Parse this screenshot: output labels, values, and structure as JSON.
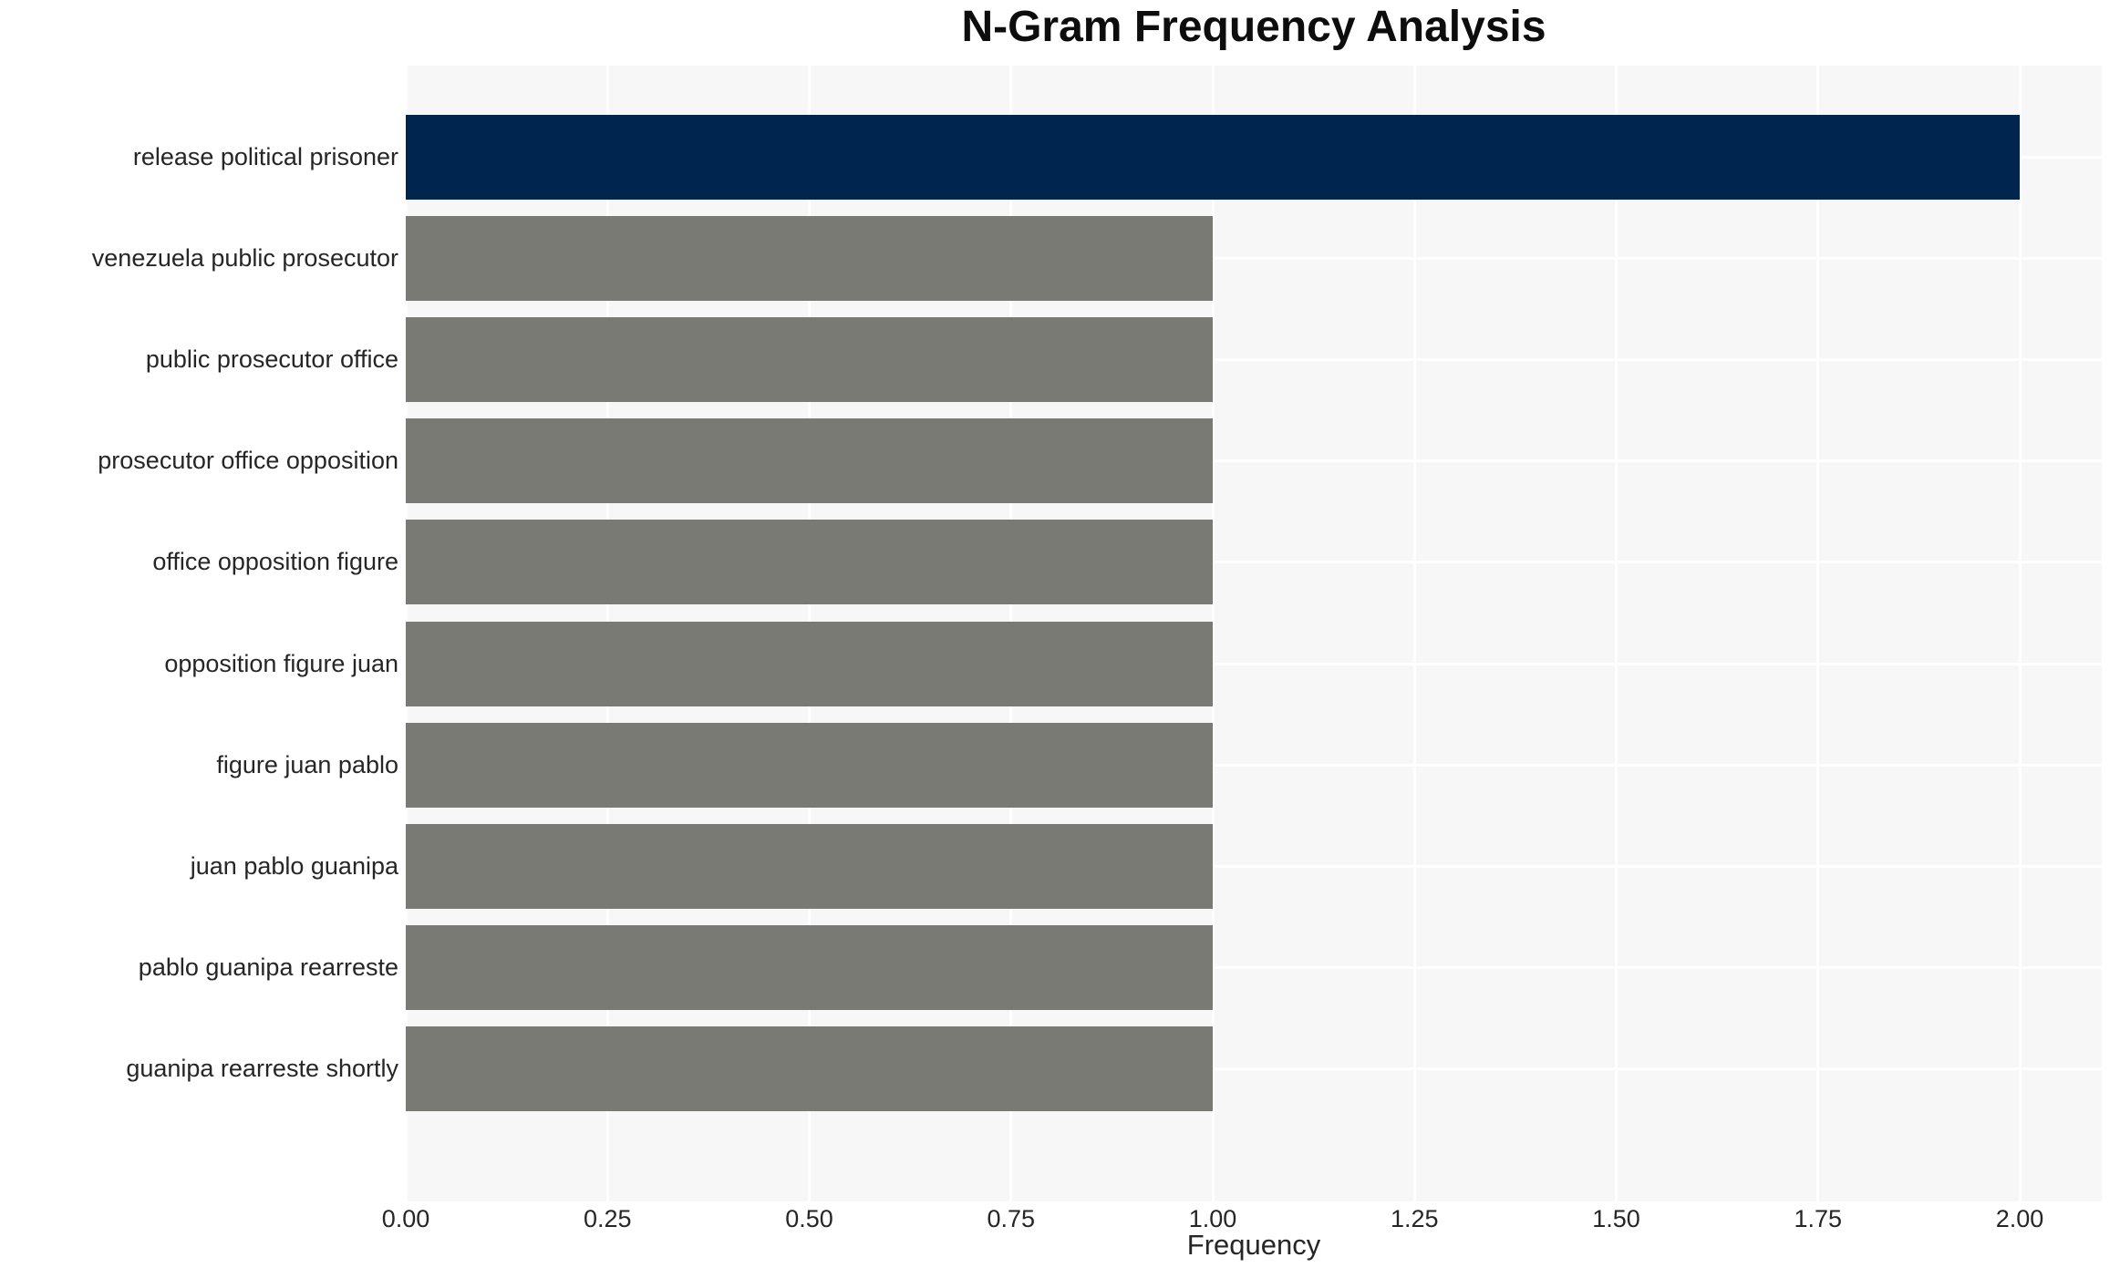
{
  "chart_data": {
    "type": "bar",
    "orientation": "horizontal",
    "title": "N-Gram Frequency Analysis",
    "xlabel": "Frequency",
    "ylabel": "",
    "categories": [
      "release political prisoner",
      "venezuela public prosecutor",
      "public prosecutor office",
      "prosecutor office opposition",
      "office opposition figure",
      "opposition figure juan",
      "figure juan pablo",
      "juan pablo guanipa",
      "pablo guanipa rearreste",
      "guanipa rearreste shortly"
    ],
    "values": [
      2,
      1,
      1,
      1,
      1,
      1,
      1,
      1,
      1,
      1
    ],
    "xlim": [
      0,
      2
    ],
    "xticks": [
      "0.00",
      "0.25",
      "0.50",
      "0.75",
      "1.00",
      "1.25",
      "1.50",
      "1.75",
      "2.00"
    ],
    "grid": true,
    "legend": false,
    "colors": {
      "highlight_bar": "#00254e",
      "default_bar": "#7a7a75",
      "plot_background": "#f7f7f7",
      "gridline": "#ffffff",
      "tick_text": "#262626",
      "title_text": "#0d0d0d"
    }
  }
}
